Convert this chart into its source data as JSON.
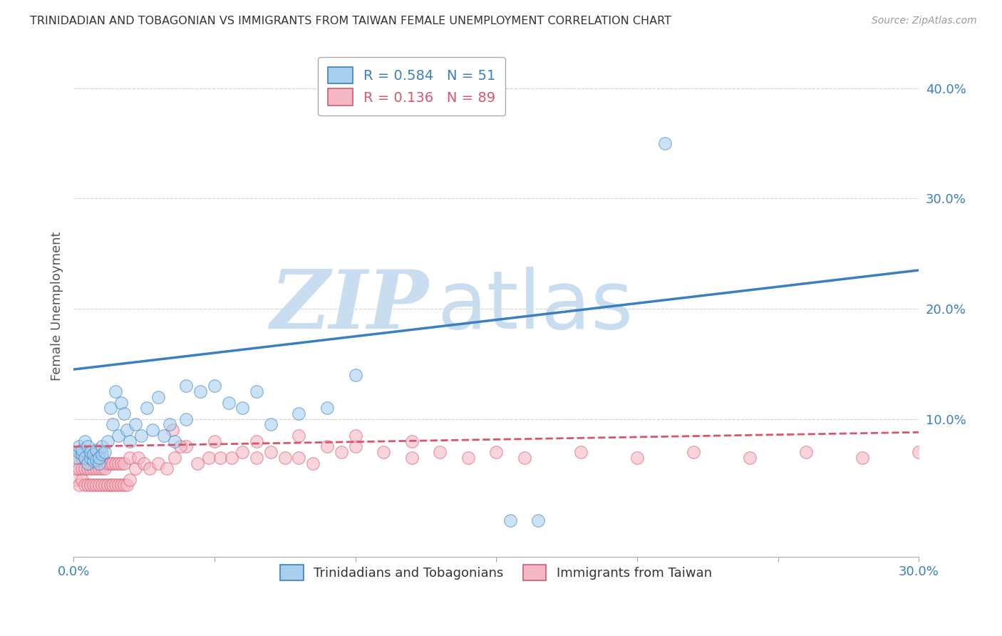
{
  "title": "TRINIDADIAN AND TOBAGONIAN VS IMMIGRANTS FROM TAIWAN FEMALE UNEMPLOYMENT CORRELATION CHART",
  "source": "Source: ZipAtlas.com",
  "ylabel": "Female Unemployment",
  "y_tick_labels": [
    "10.0%",
    "20.0%",
    "30.0%",
    "40.0%"
  ],
  "y_tick_values": [
    0.1,
    0.2,
    0.3,
    0.4
  ],
  "xlim": [
    0.0,
    0.3
  ],
  "ylim": [
    -0.025,
    0.43
  ],
  "legend_r1": "R = 0.584",
  "legend_n1": "N = 51",
  "legend_r2": "R = 0.136",
  "legend_n2": "N = 89",
  "series1_color": "#a8d0ee",
  "series2_color": "#f4b8c4",
  "trendline1_color": "#3a7fbf",
  "trendline2_color": "#d9556e",
  "background_color": "#ffffff",
  "watermark_zip": "ZIP",
  "watermark_atlas": "atlas",
  "watermark_color_zip": "#c8ddf0",
  "watermark_color_atlas": "#c8ddf0",
  "series1_label": "Trinidadians and Tobagonians",
  "series2_label": "Immigrants from Taiwan",
  "trendline1_x": [
    0.0,
    0.3
  ],
  "trendline1_y": [
    0.145,
    0.235
  ],
  "trendline2_x": [
    0.0,
    0.3
  ],
  "trendline2_y": [
    0.075,
    0.088
  ],
  "series1_x": [
    0.001,
    0.002,
    0.002,
    0.003,
    0.003,
    0.004,
    0.004,
    0.005,
    0.005,
    0.006,
    0.006,
    0.007,
    0.007,
    0.008,
    0.008,
    0.009,
    0.009,
    0.01,
    0.01,
    0.011,
    0.012,
    0.013,
    0.014,
    0.015,
    0.016,
    0.017,
    0.018,
    0.019,
    0.02,
    0.022,
    0.024,
    0.026,
    0.028,
    0.03,
    0.032,
    0.034,
    0.036,
    0.04,
    0.045,
    0.05,
    0.055,
    0.06,
    0.065,
    0.07,
    0.08,
    0.09,
    0.1,
    0.21,
    0.155,
    0.165,
    0.04
  ],
  "series1_y": [
    0.065,
    0.07,
    0.075,
    0.068,
    0.072,
    0.065,
    0.08,
    0.06,
    0.075,
    0.065,
    0.07,
    0.062,
    0.068,
    0.063,
    0.072,
    0.06,
    0.065,
    0.068,
    0.075,
    0.07,
    0.08,
    0.11,
    0.095,
    0.125,
    0.085,
    0.115,
    0.105,
    0.09,
    0.08,
    0.095,
    0.085,
    0.11,
    0.09,
    0.12,
    0.085,
    0.095,
    0.08,
    0.1,
    0.125,
    0.13,
    0.115,
    0.11,
    0.125,
    0.095,
    0.105,
    0.11,
    0.14,
    0.35,
    0.008,
    0.008,
    0.13
  ],
  "series2_x": [
    0.001,
    0.001,
    0.002,
    0.002,
    0.002,
    0.003,
    0.003,
    0.003,
    0.004,
    0.004,
    0.004,
    0.005,
    0.005,
    0.005,
    0.006,
    0.006,
    0.006,
    0.007,
    0.007,
    0.007,
    0.008,
    0.008,
    0.008,
    0.009,
    0.009,
    0.009,
    0.01,
    0.01,
    0.01,
    0.011,
    0.011,
    0.012,
    0.012,
    0.013,
    0.013,
    0.014,
    0.014,
    0.015,
    0.015,
    0.016,
    0.016,
    0.017,
    0.017,
    0.018,
    0.018,
    0.019,
    0.02,
    0.02,
    0.022,
    0.023,
    0.025,
    0.027,
    0.03,
    0.033,
    0.036,
    0.04,
    0.044,
    0.048,
    0.052,
    0.056,
    0.06,
    0.065,
    0.07,
    0.075,
    0.08,
    0.085,
    0.09,
    0.095,
    0.1,
    0.11,
    0.12,
    0.13,
    0.14,
    0.15,
    0.16,
    0.18,
    0.2,
    0.22,
    0.24,
    0.26,
    0.28,
    0.3,
    0.035,
    0.038,
    0.05,
    0.065,
    0.08,
    0.1,
    0.12
  ],
  "series2_y": [
    0.045,
    0.055,
    0.04,
    0.055,
    0.065,
    0.045,
    0.055,
    0.065,
    0.04,
    0.055,
    0.065,
    0.04,
    0.055,
    0.065,
    0.04,
    0.055,
    0.065,
    0.04,
    0.055,
    0.065,
    0.04,
    0.055,
    0.065,
    0.04,
    0.055,
    0.065,
    0.04,
    0.055,
    0.065,
    0.04,
    0.055,
    0.04,
    0.06,
    0.04,
    0.06,
    0.04,
    0.06,
    0.04,
    0.06,
    0.04,
    0.06,
    0.04,
    0.06,
    0.04,
    0.06,
    0.04,
    0.045,
    0.065,
    0.055,
    0.065,
    0.06,
    0.055,
    0.06,
    0.055,
    0.065,
    0.075,
    0.06,
    0.065,
    0.065,
    0.065,
    0.07,
    0.065,
    0.07,
    0.065,
    0.065,
    0.06,
    0.075,
    0.07,
    0.075,
    0.07,
    0.065,
    0.07,
    0.065,
    0.07,
    0.065,
    0.07,
    0.065,
    0.07,
    0.065,
    0.07,
    0.065,
    0.07,
    0.09,
    0.075,
    0.08,
    0.08,
    0.085,
    0.085,
    0.08
  ]
}
